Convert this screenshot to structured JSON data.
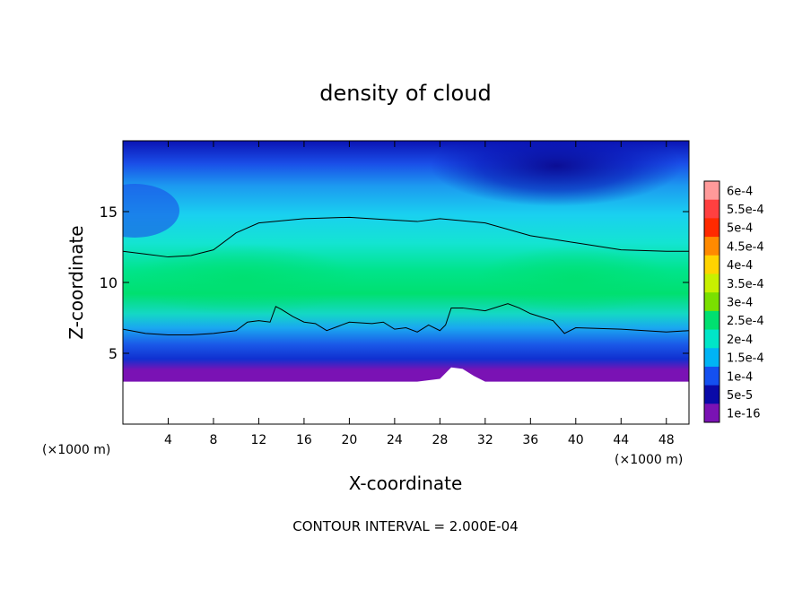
{
  "chart_data": {
    "type": "heatmap",
    "title": "density of cloud",
    "xlabel": "X-coordinate",
    "ylabel": "Z-coordinate",
    "x_unit_label": "(×1000 m)",
    "footer": "CONTOUR INTERVAL = 2.000E-04",
    "xlim": [
      0,
      50
    ],
    "ylim": [
      0,
      20
    ],
    "x_ticks": [
      {
        "value": 4,
        "label": "4"
      },
      {
        "value": 8,
        "label": "8"
      },
      {
        "value": 12,
        "label": "12"
      },
      {
        "value": 16,
        "label": "16"
      },
      {
        "value": 20,
        "label": "20"
      },
      {
        "value": 24,
        "label": "24"
      },
      {
        "value": 28,
        "label": "28"
      },
      {
        "value": 32,
        "label": "32"
      },
      {
        "value": 36,
        "label": "36"
      },
      {
        "value": 40,
        "label": "40"
      },
      {
        "value": 44,
        "label": "44"
      },
      {
        "value": 48,
        "label": "48"
      }
    ],
    "y_ticks": [
      {
        "value": 5,
        "label": "5"
      },
      {
        "value": 10,
        "label": "10"
      },
      {
        "value": 15,
        "label": "15"
      }
    ],
    "colorbar": {
      "labels": [
        "6e-4",
        "5.5e-4",
        "5e-4",
        "4.5e-4",
        "4e-4",
        "3.5e-4",
        "3e-4",
        "2.5e-4",
        "2e-4",
        "1.5e-4",
        "1e-4",
        "5e-5",
        "1e-16"
      ],
      "colors": [
        "#ff9a9a",
        "#ff4040",
        "#ff2a00",
        "#ff8a00",
        "#ffd400",
        "#c8f000",
        "#7ae000",
        "#00e070",
        "#00e6c8",
        "#00b4f5",
        "#1450f0",
        "#0a0aa8",
        "#7a12b4"
      ]
    },
    "field_bands": [
      {
        "z_range": [
          0,
          3
        ],
        "description": "terrain",
        "color": "#ffffff"
      },
      {
        "z_range": [
          3,
          4
        ],
        "value": 5e-05,
        "color": "#7a12b4"
      },
      {
        "z_range": [
          4,
          6.5
        ],
        "value": 0.0001,
        "color": "#1450f0"
      },
      {
        "z_range": [
          6.5,
          8
        ],
        "value": 0.00015,
        "color": "#00b4f5"
      },
      {
        "z_range": [
          8,
          11
        ],
        "value": 0.00025,
        "color": "#00e070"
      },
      {
        "z_range": [
          11,
          14.5
        ],
        "value": 0.0002,
        "color": "#00e6c8"
      },
      {
        "z_range": [
          14.5,
          17
        ],
        "value": 0.00015,
        "color": "#00b4f5"
      },
      {
        "z_range": [
          17,
          20
        ],
        "value": 0.0001,
        "color": "#1450f0"
      }
    ],
    "terrain_top": [
      [
        0,
        3
      ],
      [
        2,
        3
      ],
      [
        4,
        3
      ],
      [
        6,
        3
      ],
      [
        8,
        3
      ],
      [
        10,
        3
      ],
      [
        12,
        3
      ],
      [
        14,
        3
      ],
      [
        16,
        3
      ],
      [
        18,
        3
      ],
      [
        20,
        3
      ],
      [
        22,
        3
      ],
      [
        24,
        3
      ],
      [
        26,
        3
      ],
      [
        28,
        3.2
      ],
      [
        29,
        4
      ],
      [
        30,
        3.9
      ],
      [
        31,
        3.4
      ],
      [
        32,
        3
      ],
      [
        34,
        3
      ],
      [
        36,
        3
      ],
      [
        38,
        3
      ],
      [
        40,
        3
      ],
      [
        42,
        3
      ],
      [
        44,
        3
      ],
      [
        46,
        3
      ],
      [
        48,
        3
      ],
      [
        50,
        3
      ]
    ],
    "contour_upper": [
      [
        0,
        12.2
      ],
      [
        2,
        12
      ],
      [
        4,
        11.8
      ],
      [
        6,
        11.9
      ],
      [
        8,
        12.3
      ],
      [
        10,
        13.5
      ],
      [
        12,
        14.2
      ],
      [
        16,
        14.5
      ],
      [
        20,
        14.6
      ],
      [
        24,
        14.4
      ],
      [
        26,
        14.3
      ],
      [
        28,
        14.5
      ],
      [
        32,
        14.2
      ],
      [
        36,
        13.3
      ],
      [
        40,
        12.8
      ],
      [
        44,
        12.3
      ],
      [
        48,
        12.2
      ],
      [
        50,
        12.2
      ]
    ],
    "contour_lower": [
      [
        0,
        6.7
      ],
      [
        2,
        6.4
      ],
      [
        4,
        6.3
      ],
      [
        6,
        6.3
      ],
      [
        8,
        6.4
      ],
      [
        10,
        6.6
      ],
      [
        11,
        7.2
      ],
      [
        12,
        7.3
      ],
      [
        13,
        7.2
      ],
      [
        13.5,
        8.3
      ],
      [
        14,
        8.1
      ],
      [
        15,
        7.6
      ],
      [
        16,
        7.2
      ],
      [
        17,
        7.1
      ],
      [
        18,
        6.6
      ],
      [
        19,
        6.9
      ],
      [
        20,
        7.2
      ],
      [
        22,
        7.1
      ],
      [
        23,
        7.2
      ],
      [
        24,
        6.7
      ],
      [
        25,
        6.8
      ],
      [
        26,
        6.5
      ],
      [
        27,
        7
      ],
      [
        28,
        6.6
      ],
      [
        28.5,
        7
      ],
      [
        29,
        8.2
      ],
      [
        30,
        8.2
      ],
      [
        32,
        8
      ],
      [
        34,
        8.5
      ],
      [
        35,
        8.2
      ],
      [
        36,
        7.8
      ],
      [
        38,
        7.3
      ],
      [
        39,
        6.4
      ],
      [
        40,
        6.8
      ],
      [
        44,
        6.7
      ],
      [
        48,
        6.5
      ],
      [
        50,
        6.6
      ]
    ]
  }
}
